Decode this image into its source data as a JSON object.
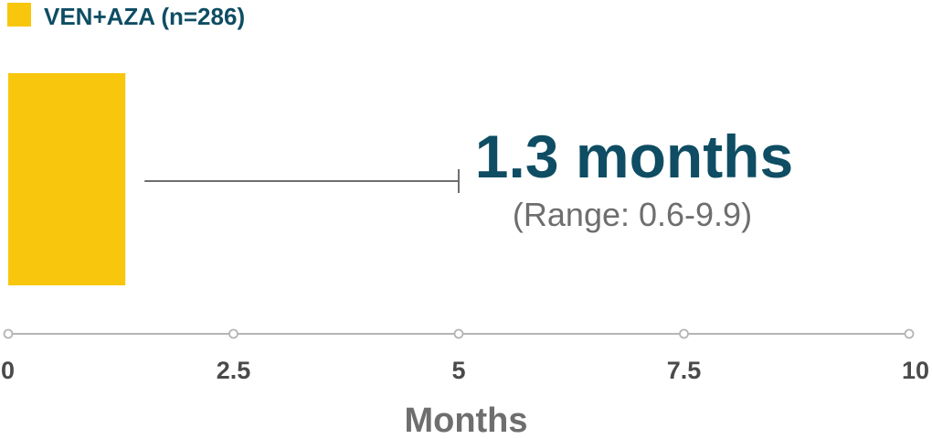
{
  "colors": {
    "bar": "#F8C60C",
    "text_primary": "#0E4D63",
    "text_secondary": "#6E6E6E",
    "axis": "#B5B5B5",
    "tick_label": "#4A4A4A"
  },
  "chart_data": {
    "type": "bar",
    "orientation": "horizontal",
    "title": "",
    "xlabel": "Months",
    "ylabel": "",
    "xlim": [
      0,
      10
    ],
    "x_ticks": [
      0,
      2.5,
      5,
      7.5,
      10
    ],
    "x_tick_labels": [
      "0",
      "2.5",
      "5",
      "7.5",
      "10"
    ],
    "series": [
      {
        "name": "VEN+AZA (n=286)",
        "value": 1.3,
        "range": [
          0.6,
          9.9
        ]
      }
    ],
    "legend_position": "top-left",
    "grid": false,
    "annotations": {
      "value_text": "1.3 months",
      "range_text": "(Range: 0.6-9.9)"
    }
  }
}
